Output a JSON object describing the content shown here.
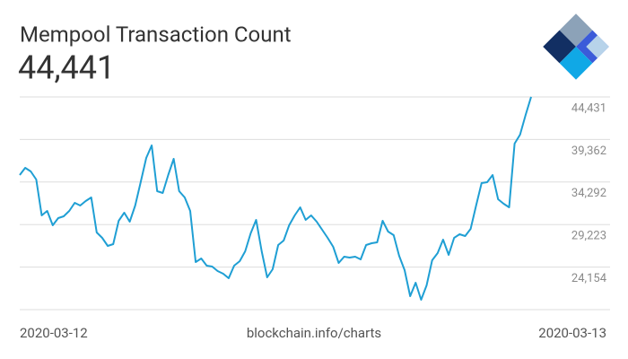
{
  "chart_data": {
    "type": "line",
    "title": "Mempool Transaction Count",
    "headline": "44,441",
    "source": "blockchain.info/charts",
    "x_start_label": "2020-03-12",
    "x_end_label": "2020-03-13",
    "color": "#1f9fd4",
    "grid": true,
    "ylim": [
      19086,
      44431
    ],
    "yticks": [
      {
        "value": 24154,
        "label": "24,154"
      },
      {
        "value": 29223,
        "label": "29,223"
      },
      {
        "value": 34292,
        "label": "34,292"
      },
      {
        "value": 39362,
        "label": "39,362"
      },
      {
        "value": 44431,
        "label": "44,431"
      }
    ],
    "values": [
      35127,
      35983,
      35555,
      34592,
      30315,
      30849,
      29138,
      29994,
      30208,
      30849,
      31812,
      31491,
      32026,
      32454,
      28283,
      27641,
      26679,
      26893,
      29673,
      30636,
      29566,
      31491,
      34271,
      37159,
      38656,
      33202,
      32988,
      35127,
      37052,
      33202,
      32454,
      30849,
      24754,
      25182,
      24326,
      24219,
      23684,
      23364,
      22829,
      24326,
      24861,
      26037,
      28176,
      29780,
      26037,
      22936,
      23898,
      26786,
      27320,
      29138,
      30315,
      31277,
      29780,
      30315,
      29566,
      28604,
      27641,
      26572,
      24647,
      25395,
      25289,
      25395,
      25075,
      26786,
      27000,
      27107,
      29673,
      28390,
      27962,
      25502,
      23791,
      20690,
      22294,
      20262,
      21973,
      24968,
      25823,
      27427,
      25609,
      27641,
      28069,
      27855,
      28711,
      31491,
      34165,
      34271,
      35127,
      32240,
      31705,
      31277,
      38870,
      39939,
      42292,
      44441
    ]
  }
}
